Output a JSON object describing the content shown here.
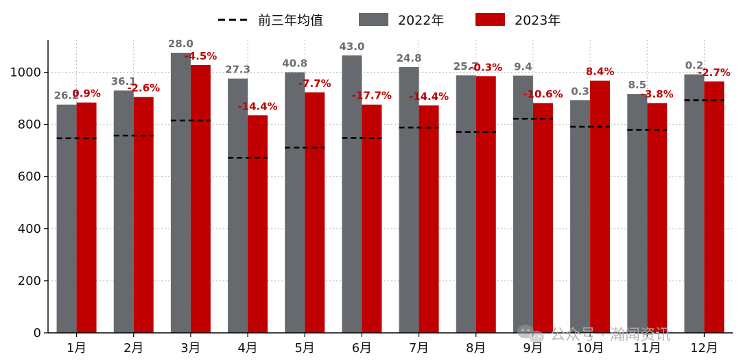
{
  "chart_data": {
    "type": "bar",
    "categories": [
      "1月",
      "2月",
      "3月",
      "4月",
      "5月",
      "6月",
      "7月",
      "8月",
      "9月",
      "10月",
      "11月",
      "12月"
    ],
    "series": [
      {
        "name": "2022年",
        "values": [
          876,
          930,
          1075,
          976,
          1000,
          1065,
          1020,
          988,
          987,
          893,
          917,
          992
        ],
        "labels": [
          "26.2",
          "36.1",
          "28.0",
          "27.3",
          "40.8",
          "43.0",
          "24.8",
          "25.7",
          "9.4",
          "0.3",
          "8.5",
          "0.2"
        ],
        "color": "#666a6e"
      },
      {
        "name": "2023年",
        "values": [
          884,
          905,
          1028,
          835,
          923,
          876,
          873,
          985,
          882,
          968,
          882,
          965
        ],
        "labels": [
          "0.9%",
          "-2.6%",
          "-4.5%",
          "-14.4%",
          "-7.7%",
          "-17.7%",
          "-14.4%",
          "-0.3%",
          "-10.6%",
          "8.4%",
          "-3.8%",
          "-2.7%"
        ],
        "color": "#c00000"
      },
      {
        "name": "前三年均值",
        "values": [
          747,
          757,
          815,
          672,
          711,
          748,
          788,
          771,
          822,
          791,
          779,
          893
        ],
        "style": "dashed",
        "color": "#000000"
      }
    ],
    "yticks": [
      0,
      200,
      400,
      600,
      800,
      1000
    ],
    "ylim": [
      0,
      1125
    ],
    "grid": true,
    "legend": "top-center"
  },
  "watermark": "公众号 · 瀚闻资讯",
  "colors": {
    "bar2022": "#666a6e",
    "bar2023": "#c00000",
    "avg": "#000000",
    "grid": "#b9b9b9"
  }
}
